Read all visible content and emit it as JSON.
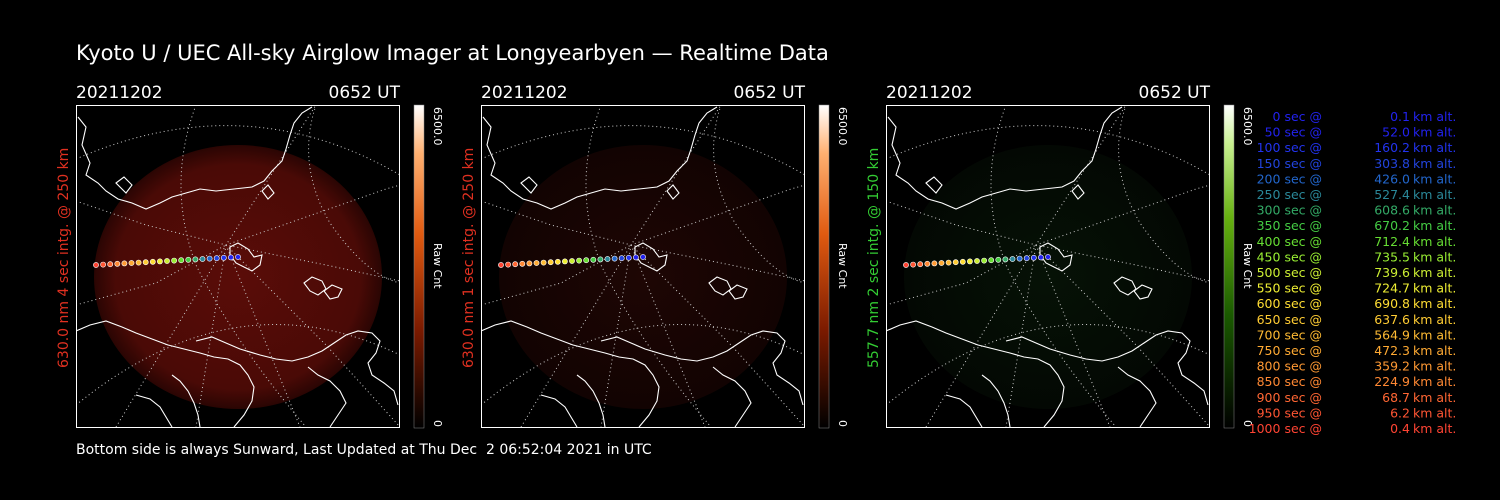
{
  "title": "Kyoto U / UEC All-sky Airglow Imager at Longyearbyen — Realtime Data",
  "footer": "Bottom side is always Sunward, Last Updated at Thu Dec  2 06:52:04 2021 in UTC",
  "panels": [
    {
      "date": "20211202",
      "time": "0652 UT",
      "side_label": "630.0 nm 4 sec intg. @ 250 km",
      "label_color": "#e03020",
      "cb_max": "6500.0",
      "cb_min": "0",
      "cb_label": "Raw Cnt",
      "colormap": "red",
      "glow": "strong"
    },
    {
      "date": "20211202",
      "time": "0652 UT",
      "side_label": "630.0 nm 1 sec intg. @ 250 km",
      "label_color": "#e03020",
      "cb_max": "6500.0",
      "cb_min": "0",
      "cb_label": "Raw Cnt",
      "colormap": "red",
      "glow": "faint"
    },
    {
      "date": "20211202",
      "time": "0652 UT",
      "side_label": "557.7 nm 2 sec intg. @ 150 km",
      "label_color": "#33cc33",
      "cb_max": "6500.0",
      "cb_min": "0",
      "cb_label": "Raw Cnt",
      "colormap": "green",
      "glow": "very-faint"
    }
  ],
  "legend": [
    {
      "sec": "0",
      "alt": "0.1",
      "color": "#2222ee"
    },
    {
      "sec": "50",
      "alt": "52.0",
      "color": "#2222ee"
    },
    {
      "sec": "100",
      "alt": "160.2",
      "color": "#2233ee"
    },
    {
      "sec": "150",
      "alt": "303.8",
      "color": "#2244dd"
    },
    {
      "sec": "200",
      "alt": "426.0",
      "color": "#2266cc"
    },
    {
      "sec": "250",
      "alt": "527.4",
      "color": "#2a8899"
    },
    {
      "sec": "300",
      "alt": "608.6",
      "color": "#33aa66"
    },
    {
      "sec": "350",
      "alt": "670.2",
      "color": "#44cc44"
    },
    {
      "sec": "400",
      "alt": "712.4",
      "color": "#66dd33"
    },
    {
      "sec": "450",
      "alt": "735.5",
      "color": "#99ee33"
    },
    {
      "sec": "500",
      "alt": "739.6",
      "color": "#ccee33"
    },
    {
      "sec": "550",
      "alt": "724.7",
      "color": "#eeee33"
    },
    {
      "sec": "600",
      "alt": "690.8",
      "color": "#ffdd33"
    },
    {
      "sec": "650",
      "alt": "637.6",
      "color": "#ffcc33"
    },
    {
      "sec": "700",
      "alt": "564.9",
      "color": "#ffbb33"
    },
    {
      "sec": "750",
      "alt": "472.3",
      "color": "#ffaa33"
    },
    {
      "sec": "800",
      "alt": "359.2",
      "color": "#ff9933"
    },
    {
      "sec": "850",
      "alt": "224.9",
      "color": "#ff8833"
    },
    {
      "sec": "900",
      "alt": "68.7",
      "color": "#ff6633"
    },
    {
      "sec": "950",
      "alt": "6.2",
      "color": "#ff5533"
    },
    {
      "sec": "1000",
      "alt": "0.4",
      "color": "#ff4433"
    }
  ]
}
